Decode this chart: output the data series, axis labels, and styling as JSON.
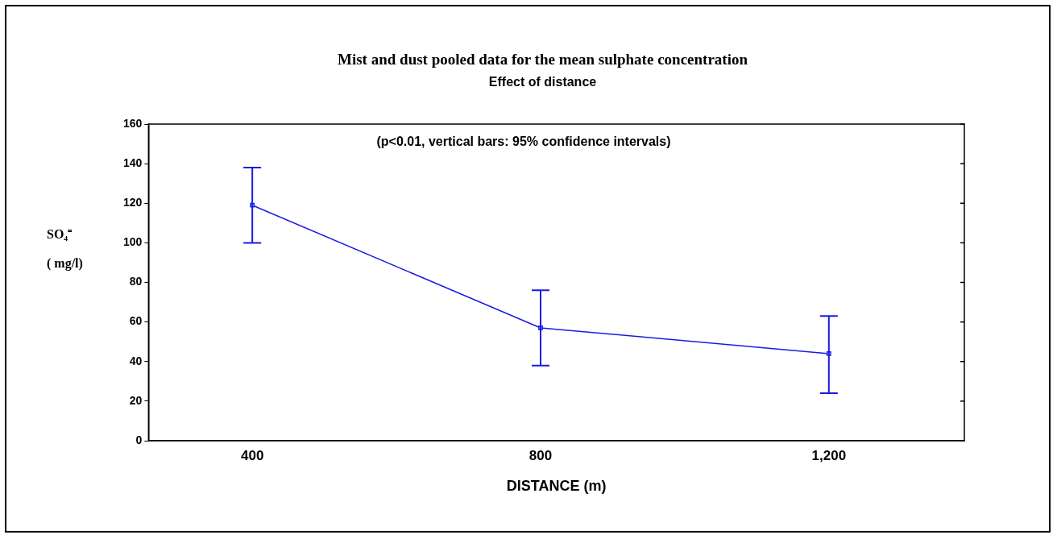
{
  "chart_data": {
    "type": "line",
    "title": "Mist and dust pooled data for the mean sulphate concentration",
    "subtitle": "Effect of distance",
    "annotations": [
      "(p<0.01, vertical bars: 95% confidence intervals)"
    ],
    "xlabel": "DISTANCE (m)",
    "ylabel": "SO₄⁼\n( mg/l)",
    "x": [
      400,
      800,
      1200
    ],
    "series": [
      {
        "color": "#1a1ae6",
        "values": [
          119,
          57,
          44
        ],
        "errors": [
          [
            100,
            138
          ],
          [
            38,
            76
          ],
          [
            24,
            63
          ]
        ]
      }
    ],
    "xlim": [
      256,
      1388
    ],
    "xticks": [
      400,
      800,
      {
        "value": 1200,
        "label": "1,200"
      }
    ],
    "ylim": [
      0,
      160
    ],
    "yticks": [
      0,
      20,
      40,
      60,
      80,
      100,
      120,
      140,
      160
    ],
    "grid": false,
    "legend": false,
    "marker": "square",
    "line_style": "solid"
  }
}
